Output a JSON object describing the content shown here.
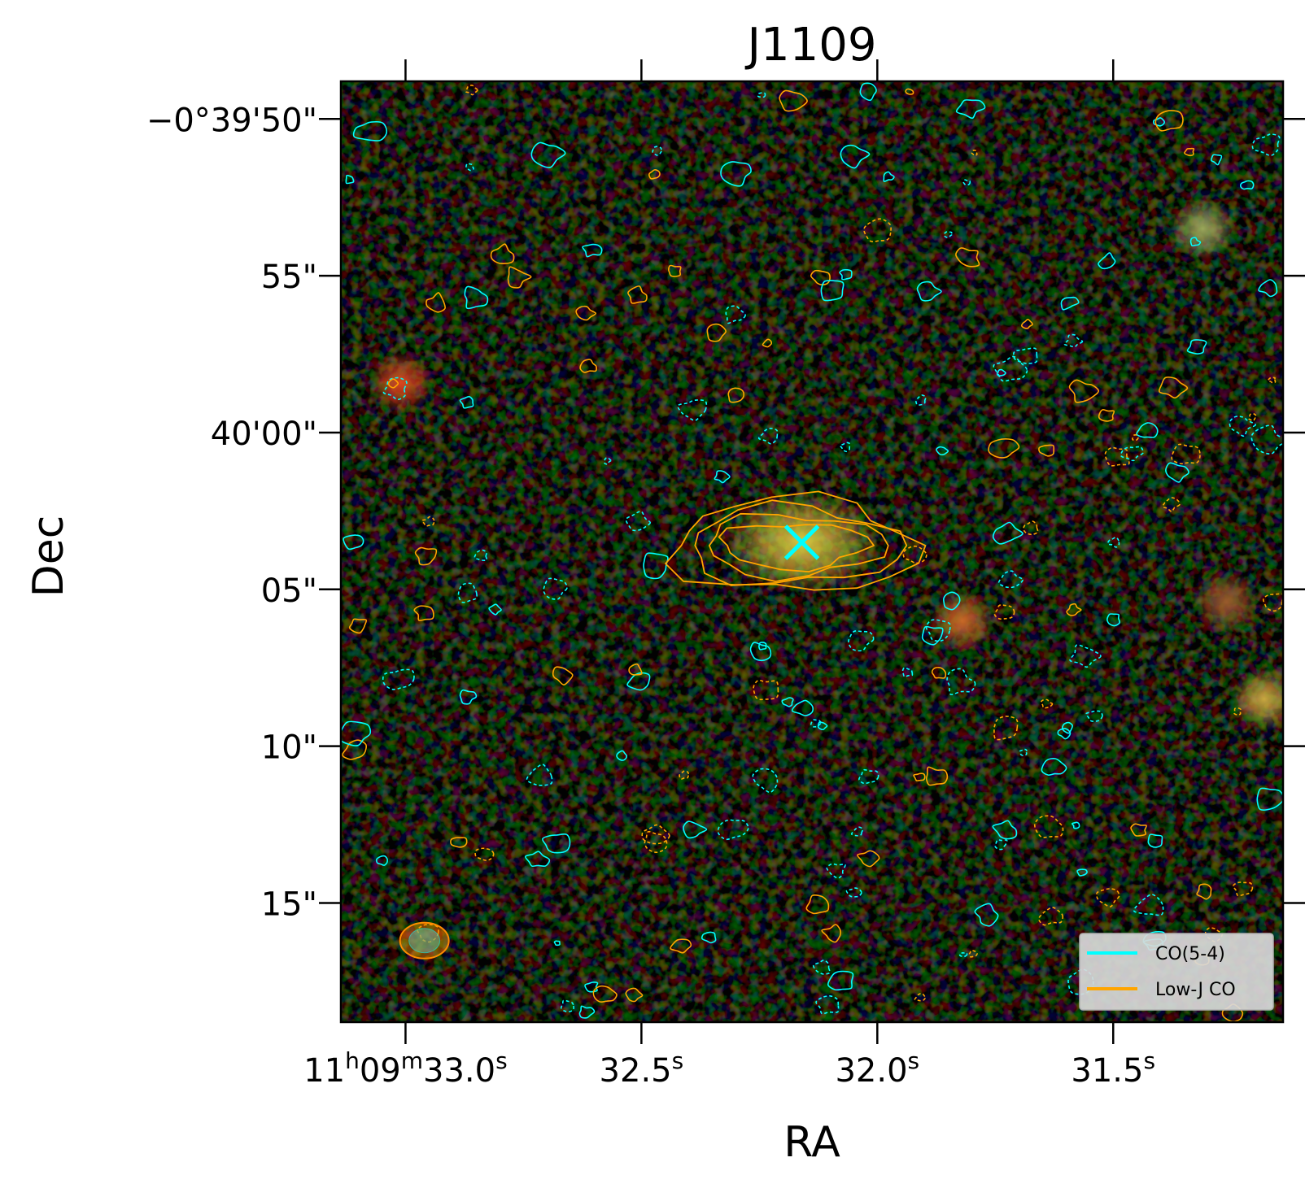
{
  "chart_data": {
    "type": "image",
    "title": "J1109",
    "xlabel": "RA",
    "ylabel": "Dec",
    "x_ticks": [
      {
        "h": "11",
        "m": "09",
        "s": "33.0",
        "value_s": 33.0
      },
      {
        "s": "32.5",
        "value_s": 32.5
      },
      {
        "s": "32.0",
        "value_s": 32.0
      },
      {
        "s": "31.5",
        "value_s": 31.5
      }
    ],
    "xlim_s": [
      33.137,
      31.14
    ],
    "y_ticks": [
      {
        "label": "−0°39'50\"",
        "value_arcsec": 50
      },
      {
        "label": "55\"",
        "value_arcsec": 55
      },
      {
        "label": "40'00\"",
        "value_arcsec": 60
      },
      {
        "label": "05\"",
        "value_arcsec": 65
      },
      {
        "label": "10\"",
        "value_arcsec": 70
      },
      {
        "label": "15\"",
        "value_arcsec": 75
      }
    ],
    "ylim_arcsec": [
      48.8,
      78.8
    ],
    "legend": {
      "placement": "lower-right",
      "entries": [
        {
          "name": "CO(5-4)",
          "color": "#00ffff"
        },
        {
          "name": "Low-J CO",
          "color": "#ffa500"
        }
      ]
    },
    "target_marker": {
      "ra_s": 32.16,
      "dec_arcsec": 63.5,
      "color": "#00ffff",
      "symbol": "x"
    },
    "sources": [
      {
        "ra_s": 32.16,
        "dec_arcsec": 63.5,
        "color": "#d8c640"
      },
      {
        "ra_s": 33.01,
        "dec_arcsec": 58.4,
        "color": "#d9481e"
      },
      {
        "ra_s": 31.31,
        "dec_arcsec": 53.5,
        "color": "#9aa65a"
      },
      {
        "ra_s": 31.82,
        "dec_arcsec": 66.0,
        "color": "#c86a28"
      },
      {
        "ra_s": 31.26,
        "dec_arcsec": 65.4,
        "color": "#9a5a2c"
      },
      {
        "ra_s": 31.18,
        "dec_arcsec": 68.5,
        "color": "#c9a840"
      }
    ],
    "beam": {
      "ra_s": 32.96,
      "dec_arcsec": 76.2,
      "color": "#ff8c00"
    },
    "colors": {
      "co54": "#00ffff",
      "lowj": "#ffa500",
      "background": "#050505"
    }
  }
}
